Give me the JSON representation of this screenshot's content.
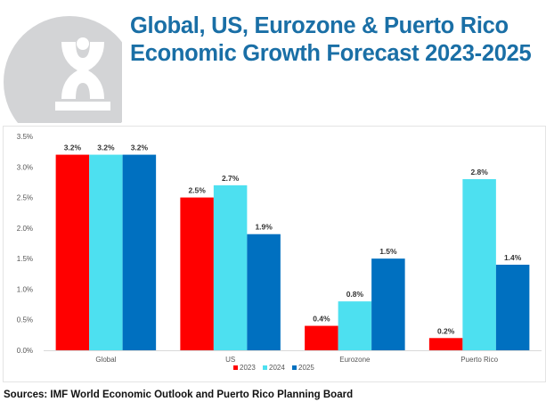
{
  "title": "Global, US, Eurozone & Puerto Rico Economic Growth Forecast 2023-2025",
  "source": "Sources: IMF World Economic Outlook and Puerto Rico Planning Board",
  "chart_data": {
    "type": "bar",
    "title": "",
    "xlabel": "",
    "ylabel": "",
    "categories": [
      "Global",
      "US",
      "Eurozone",
      "Puerto Rico"
    ],
    "series": [
      {
        "name": "2023",
        "color": "#ff0000",
        "values": [
          3.2,
          2.5,
          0.4,
          0.2
        ],
        "labels": [
          "3.2%",
          "2.5%",
          "0.4%",
          "0.2%"
        ]
      },
      {
        "name": "2024",
        "color": "#4de0f0",
        "values": [
          3.2,
          2.7,
          0.8,
          2.8
        ],
        "labels": [
          "3.2%",
          "2.7%",
          "0.8%",
          "2.8%"
        ]
      },
      {
        "name": "2025",
        "color": "#0070c0",
        "values": [
          3.2,
          1.9,
          1.5,
          1.4
        ],
        "labels": [
          "3.2%",
          "1.9%",
          "1.5%",
          "1.4%"
        ]
      }
    ],
    "ylim": [
      0,
      3.5
    ],
    "yticks": [
      "0.0%",
      "0.5%",
      "1.0%",
      "1.5%",
      "2.0%",
      "2.5%",
      "3.0%",
      "3.5%"
    ],
    "grid": false,
    "legend_position": "bottom"
  }
}
